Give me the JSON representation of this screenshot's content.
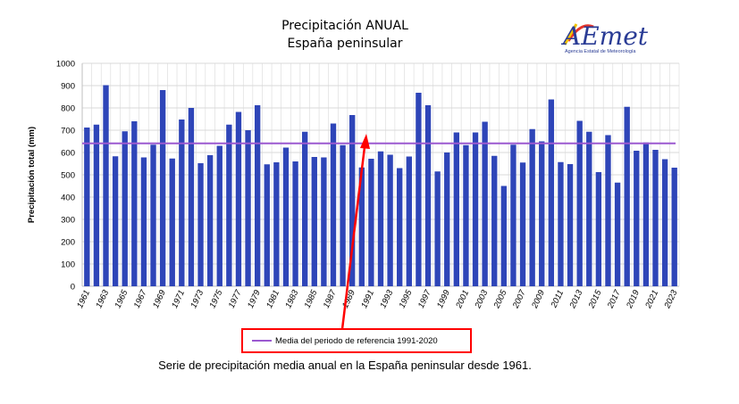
{
  "logo": {
    "text": "AEmet",
    "subtitle": "Agencia Estatal de Meteorología",
    "colors": {
      "text": "#2a3c95",
      "stroke1": "#e5352b",
      "stroke2": "#f2c300"
    }
  },
  "caption": "Serie de precipitación media anual en la España peninsular desde 1961.",
  "colors": {
    "bar": "#2e45b8",
    "reference": "#9b59d0",
    "arrow": "#ff0000",
    "grid": "#d9d9d9"
  },
  "chart_data": {
    "type": "bar",
    "title": "Precipitación ANUAL",
    "subtitle": "España peninsular",
    "ylabel": "Precipitación total (mm)",
    "xlabel": "",
    "ylim": [
      0,
      1000
    ],
    "yticks": [
      0,
      100,
      200,
      300,
      400,
      500,
      600,
      700,
      800,
      900,
      1000
    ],
    "grid": true,
    "categories": [
      1961,
      1962,
      1963,
      1964,
      1965,
      1966,
      1967,
      1968,
      1969,
      1970,
      1971,
      1972,
      1973,
      1974,
      1975,
      1976,
      1977,
      1978,
      1979,
      1980,
      1981,
      1982,
      1983,
      1984,
      1985,
      1986,
      1987,
      1988,
      1989,
      1990,
      1991,
      1992,
      1993,
      1994,
      1995,
      1996,
      1997,
      1998,
      1999,
      2000,
      2001,
      2002,
      2003,
      2004,
      2005,
      2006,
      2007,
      2008,
      2009,
      2010,
      2011,
      2012,
      2013,
      2014,
      2015,
      2016,
      2017,
      2018,
      2019,
      2020,
      2021,
      2022,
      2023
    ],
    "xtick_labels": [
      "1961",
      "1963",
      "1965",
      "1967",
      "1969",
      "1971",
      "1973",
      "1975",
      "1977",
      "1979",
      "1981",
      "1983",
      "1985",
      "1987",
      "1989",
      "1991",
      "1993",
      "1995",
      "1997",
      "1999",
      "2001",
      "2003",
      "2005",
      "2007",
      "2009",
      "2011",
      "2013",
      "2015",
      "2017",
      "2019",
      "2021",
      "2023"
    ],
    "series": [
      {
        "values": [
          712,
          725,
          902,
          583,
          695,
          740,
          578,
          635,
          880,
          573,
          748,
          800,
          552,
          588,
          630,
          725,
          782,
          700,
          812,
          547,
          556,
          622,
          560,
          693,
          580,
          578,
          730,
          633,
          768,
          533,
          572,
          605,
          590,
          530,
          582,
          868,
          812,
          515,
          600,
          690,
          633,
          690,
          738,
          585,
          450,
          635,
          555,
          705,
          650,
          838,
          557,
          548,
          742,
          693,
          512,
          678,
          465,
          805,
          608,
          645,
          612,
          570,
          532
        ]
      }
    ],
    "reference_line": {
      "label": "Media del periodo de referencia 1991-2020",
      "value": 641
    },
    "legend": {
      "position": "bottom",
      "entries": [
        "Media del periodo de referencia 1991-2020"
      ]
    }
  }
}
